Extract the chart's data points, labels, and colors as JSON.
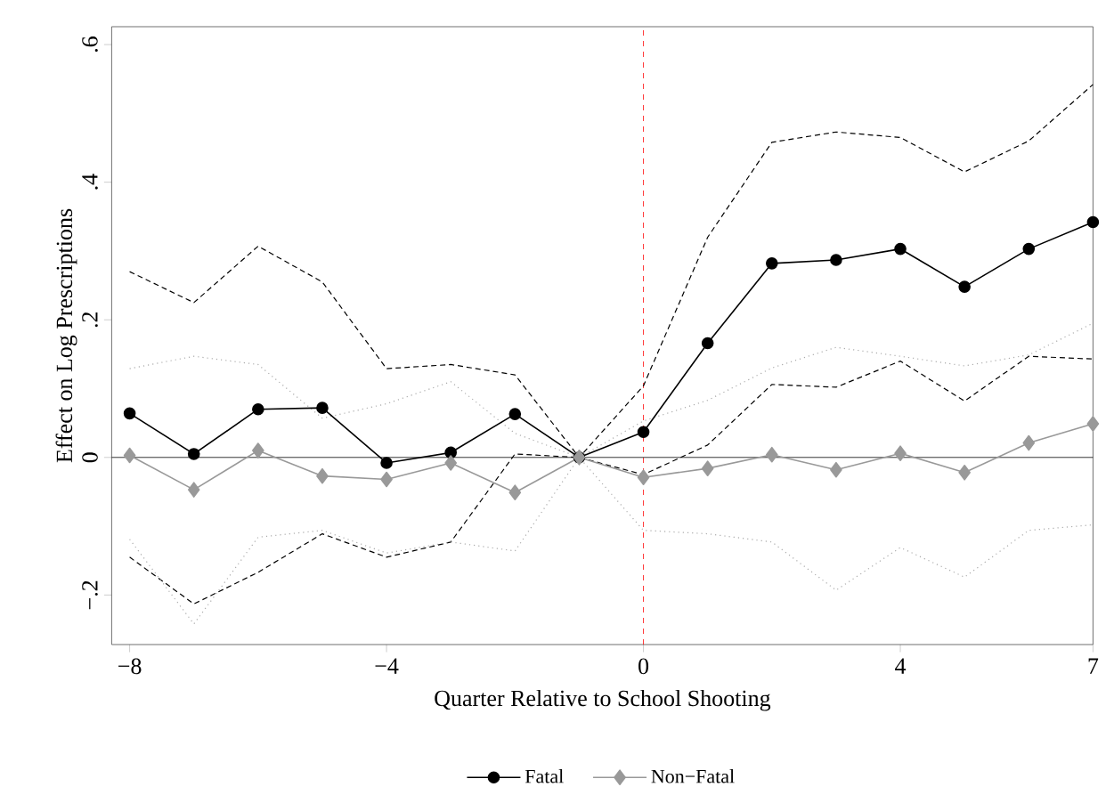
{
  "chart_data": {
    "type": "line",
    "xlabel": "Quarter Relative to School Shooting",
    "ylabel": "Effect on Log Prescriptions",
    "x": [
      -8,
      -7,
      -6,
      -5,
      -4,
      -3,
      -2,
      -1,
      0,
      1,
      2,
      3,
      4,
      5,
      6,
      7
    ],
    "series": [
      {
        "name": "Fatal",
        "color": "#000000",
        "marker": "circle",
        "line_style": "solid",
        "values": [
          0.064,
          0.005,
          0.07,
          0.072,
          -0.008,
          0.007,
          0.063,
          0,
          0.037,
          0.166,
          0.282,
          0.287,
          0.303,
          0.248,
          0.303,
          0.342
        ]
      },
      {
        "name": "Non−Fatal",
        "color": "#999999",
        "marker": "diamond",
        "line_style": "solid",
        "values": [
          0.003,
          -0.047,
          0.01,
          -0.027,
          -0.032,
          -0.008,
          -0.051,
          0,
          -0.029,
          -0.016,
          0.004,
          -0.018,
          0.006,
          -0.022,
          0.021,
          0.049
        ]
      },
      {
        "color": "#000000",
        "marker": "none",
        "line_style": "dashed",
        "values": [
          0.27,
          0.225,
          0.307,
          0.255,
          0.129,
          0.135,
          0.12,
          0,
          0.104,
          0.32,
          0.458,
          0.473,
          0.465,
          0.415,
          0.46,
          0.542
        ]
      },
      {
        "color": "#000000",
        "marker": "none",
        "line_style": "dashed",
        "values": [
          -0.145,
          -0.213,
          -0.167,
          -0.111,
          -0.145,
          -0.123,
          0.005,
          0,
          -0.025,
          0.018,
          0.106,
          0.102,
          0.14,
          0.082,
          0.147,
          0.143
        ]
      },
      {
        "color": "#aaaaaa",
        "marker": "none",
        "line_style": "dotted",
        "values": [
          0.129,
          0.147,
          0.135,
          0.057,
          0.078,
          0.11,
          0.035,
          0,
          0.053,
          0.083,
          0.13,
          0.16,
          0.147,
          0.133,
          0.149,
          0.195
        ]
      },
      {
        "color": "#aaaaaa",
        "marker": "none",
        "line_style": "dotted",
        "values": [
          -0.119,
          -0.242,
          -0.116,
          -0.106,
          -0.139,
          -0.123,
          -0.136,
          0,
          -0.106,
          -0.111,
          -0.123,
          -0.193,
          -0.131,
          -0.174,
          -0.106,
          -0.098
        ]
      }
    ],
    "xlim": [
      -8.28,
      7
    ],
    "ylim": [
      -0.272,
      0.626
    ],
    "xticks": [
      {
        "value": -8,
        "label": "−8"
      },
      {
        "value": -4,
        "label": "−4"
      },
      0,
      4,
      7
    ],
    "yticks": [
      {
        "value": -0.2,
        "label": "−.2"
      },
      0,
      {
        "value": 0.2,
        "label": ".2"
      },
      {
        "value": 0.4,
        "label": ".4"
      },
      {
        "value": 0.6,
        "label": ".6"
      }
    ],
    "ref_lines": [
      {
        "axis": "x",
        "value": 0,
        "color": "#ff0000",
        "line_style": "dashed"
      },
      {
        "axis": "y",
        "value": 0,
        "color": "#000000",
        "line_style": "solid"
      }
    ],
    "grid": false,
    "legend": "bottom"
  }
}
